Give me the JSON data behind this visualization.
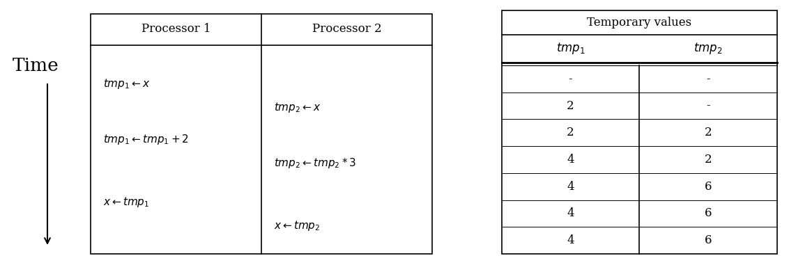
{
  "bg_color": "#ffffff",
  "time_label": "Time",
  "proc_header": [
    "Processor 1",
    "Processor 2"
  ],
  "proc1_instructions": [
    "$tmp_1 \\leftarrow x$",
    "$tmp_1 \\leftarrow tmp_1 + 2$",
    "$x \\leftarrow tmp_1$"
  ],
  "proc2_instructions": [
    "$tmp_2 \\leftarrow x$",
    "$tmp_2 \\leftarrow tmp_2 * 3$",
    "$x \\leftarrow tmp_2$"
  ],
  "temp_header": "Temporary values",
  "temp_col_headers": [
    "$tmp_1$",
    "$tmp_2$"
  ],
  "temp_rows": [
    [
      "-",
      "-"
    ],
    [
      "2",
      "-"
    ],
    [
      "2",
      "2"
    ],
    [
      "4",
      "2"
    ],
    [
      "4",
      "6"
    ],
    [
      "4",
      "6"
    ],
    [
      "4",
      "6"
    ]
  ]
}
